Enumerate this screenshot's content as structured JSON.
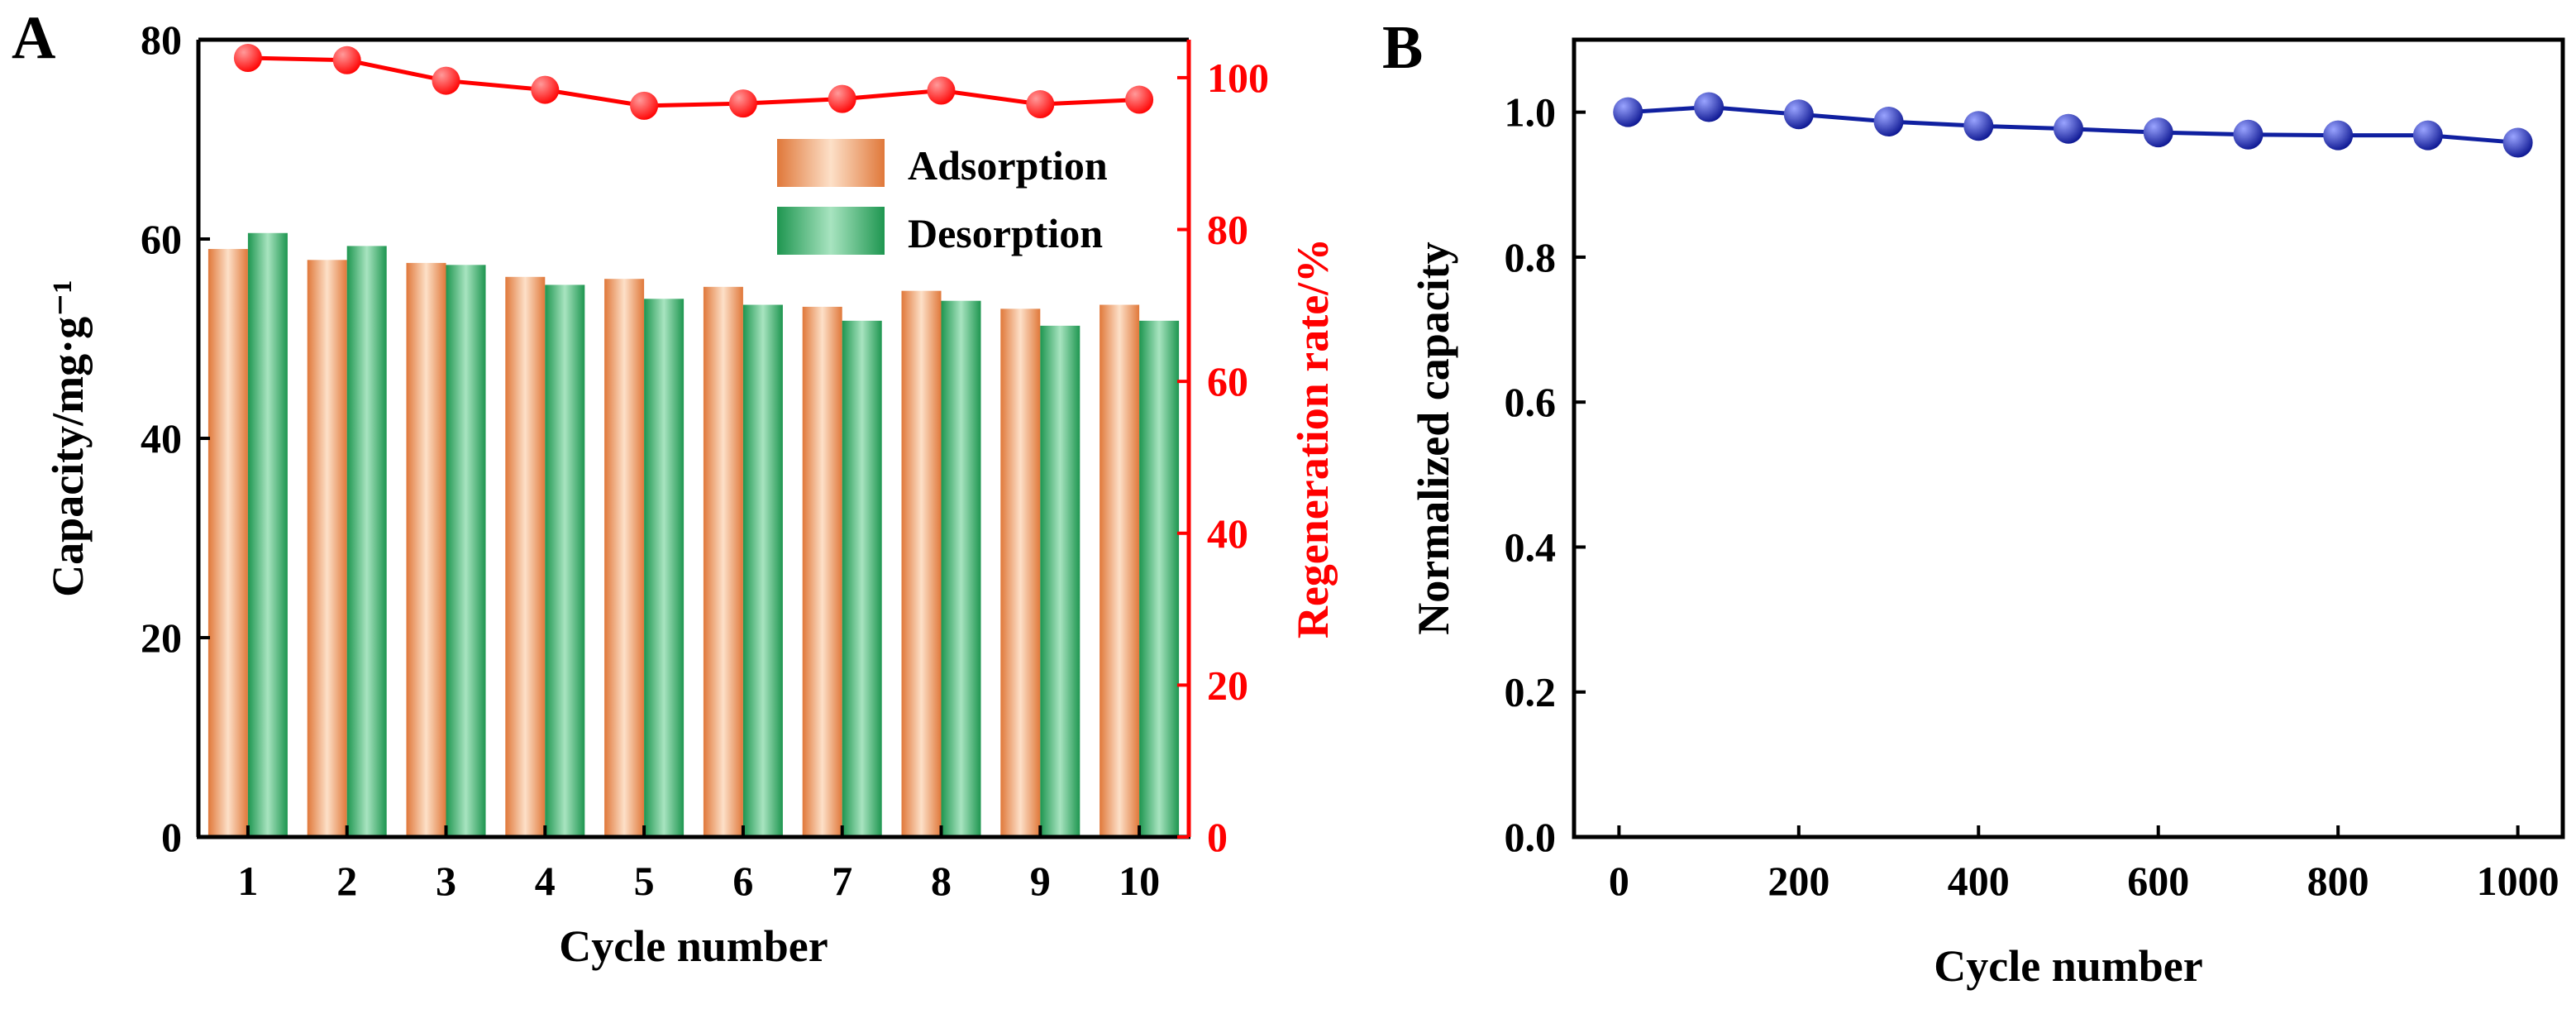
{
  "panels": {
    "A": {
      "label": "A"
    },
    "B": {
      "label": "B"
    }
  },
  "colors": {
    "adsorption_light": "#fde0c8",
    "adsorption_dark": "#e0783a",
    "desorption_light": "#a8e4c0",
    "desorption_dark": "#1e9650",
    "regeneration": "#ff0000",
    "normalized_light": "#9aa4ff",
    "normalized_dark": "#0a1490",
    "normalized_line": "#1020a0",
    "axis": "#000000"
  },
  "chart_data": [
    {
      "panel": "A",
      "type": "bar",
      "xlabel": "Cycle number",
      "ylabel": "Capacity/mg·g⁻¹",
      "y2label": "Regeneration rate/%",
      "categories": [
        "1",
        "2",
        "3",
        "4",
        "5",
        "6",
        "7",
        "8",
        "9",
        "10"
      ],
      "ylim": [
        0,
        80
      ],
      "yticks": [
        "0",
        "20",
        "40",
        "60",
        "80"
      ],
      "y2lim": [
        0,
        105
      ],
      "y2ticks": [
        "0",
        "20",
        "40",
        "60",
        "80",
        "100"
      ],
      "legend_position": "top-right",
      "series": [
        {
          "name": "Adsorption",
          "type": "bar",
          "axis": "left",
          "values": [
            59.0,
            57.9,
            57.6,
            56.2,
            56.0,
            55.2,
            53.2,
            54.8,
            53.0,
            53.4
          ]
        },
        {
          "name": "Desorption",
          "type": "bar",
          "axis": "left",
          "values": [
            60.6,
            59.3,
            57.4,
            55.4,
            54.0,
            53.4,
            51.8,
            53.8,
            51.3,
            51.8
          ]
        },
        {
          "type": "line",
          "axis": "right",
          "values": [
            102.6,
            102.3,
            99.6,
            98.4,
            96.3,
            96.6,
            97.2,
            98.3,
            96.5,
            97.1
          ]
        }
      ]
    },
    {
      "panel": "B",
      "type": "line",
      "xlabel": "Cycle number",
      "ylabel": "Normalized capacity",
      "xlim": [
        -50,
        1050
      ],
      "xticks": [
        "0",
        "200",
        "400",
        "600",
        "800",
        "1000"
      ],
      "ylim": [
        0,
        1.1
      ],
      "yticks": [
        "0.0",
        "0.2",
        "0.4",
        "0.6",
        "0.8",
        "1.0"
      ],
      "series": [
        {
          "x": [
            10,
            100,
            200,
            300,
            400,
            500,
            600,
            700,
            800,
            900,
            1000
          ],
          "values": [
            1.0,
            1.007,
            0.997,
            0.987,
            0.981,
            0.977,
            0.972,
            0.969,
            0.968,
            0.968,
            0.958
          ]
        }
      ]
    }
  ]
}
